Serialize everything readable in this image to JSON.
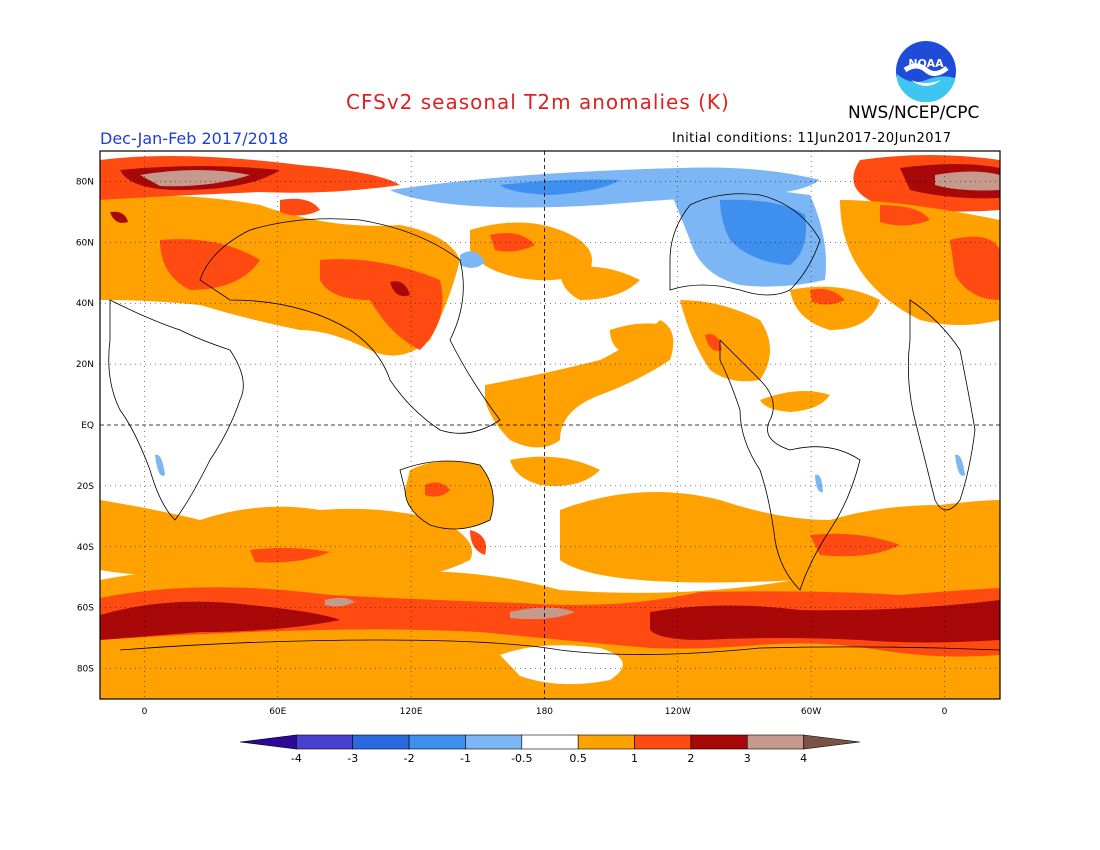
{
  "title": "CFSv2 seasonal T2m anomalies (K)",
  "agency": "NWS/NCEP/CPC",
  "logo_text": "NOAA",
  "season": "Dec-Jan-Feb 2017/2018",
  "initial_conditions": "Initial conditions: 11Jun2017-20Jun2017",
  "map": {
    "lat_labels": [
      {
        "lat": 80,
        "text": "80N"
      },
      {
        "lat": 60,
        "text": "60N"
      },
      {
        "lat": 40,
        "text": "40N"
      },
      {
        "lat": 20,
        "text": "20N"
      },
      {
        "lat": 0,
        "text": "EQ"
      },
      {
        "lat": -20,
        "text": "20S"
      },
      {
        "lat": -40,
        "text": "40S"
      },
      {
        "lat": -60,
        "text": "60S"
      },
      {
        "lat": -80,
        "text": "80S"
      }
    ],
    "lon_labels": [
      {
        "lon": 0,
        "text": "0"
      },
      {
        "lon": 60,
        "text": "60E"
      },
      {
        "lon": 120,
        "text": "120E"
      },
      {
        "lon": 180,
        "text": "180"
      },
      {
        "lon": 240,
        "text": "120W"
      },
      {
        "lon": 300,
        "text": "60W"
      },
      {
        "lon": 360,
        "text": "0"
      }
    ],
    "lon_range": [
      -20,
      385
    ],
    "lat_range": [
      -90,
      90
    ]
  },
  "colorbar": {
    "colors": [
      "#2b0a9a",
      "#4a40d0",
      "#2a6ae0",
      "#3f90ee",
      "#7cb6f4",
      "#ffffff",
      "#ffa100",
      "#ff4b12",
      "#a80808",
      "#c59a8c",
      "#7b5246"
    ],
    "labels": [
      "-4",
      "-3",
      "-2",
      "-1",
      "-0.5",
      "0.5",
      "1",
      "2",
      "3",
      "4"
    ]
  },
  "colors": {
    "title": "#e02020",
    "season": "#1d3fd8",
    "warm1": "#ffa100",
    "warm2": "#ff4b12",
    "warm3": "#a80808",
    "warm4": "#c59a8c",
    "cool1": "#7cb6f4",
    "cool2": "#3f90ee",
    "cool3": "#2a6ae0"
  }
}
